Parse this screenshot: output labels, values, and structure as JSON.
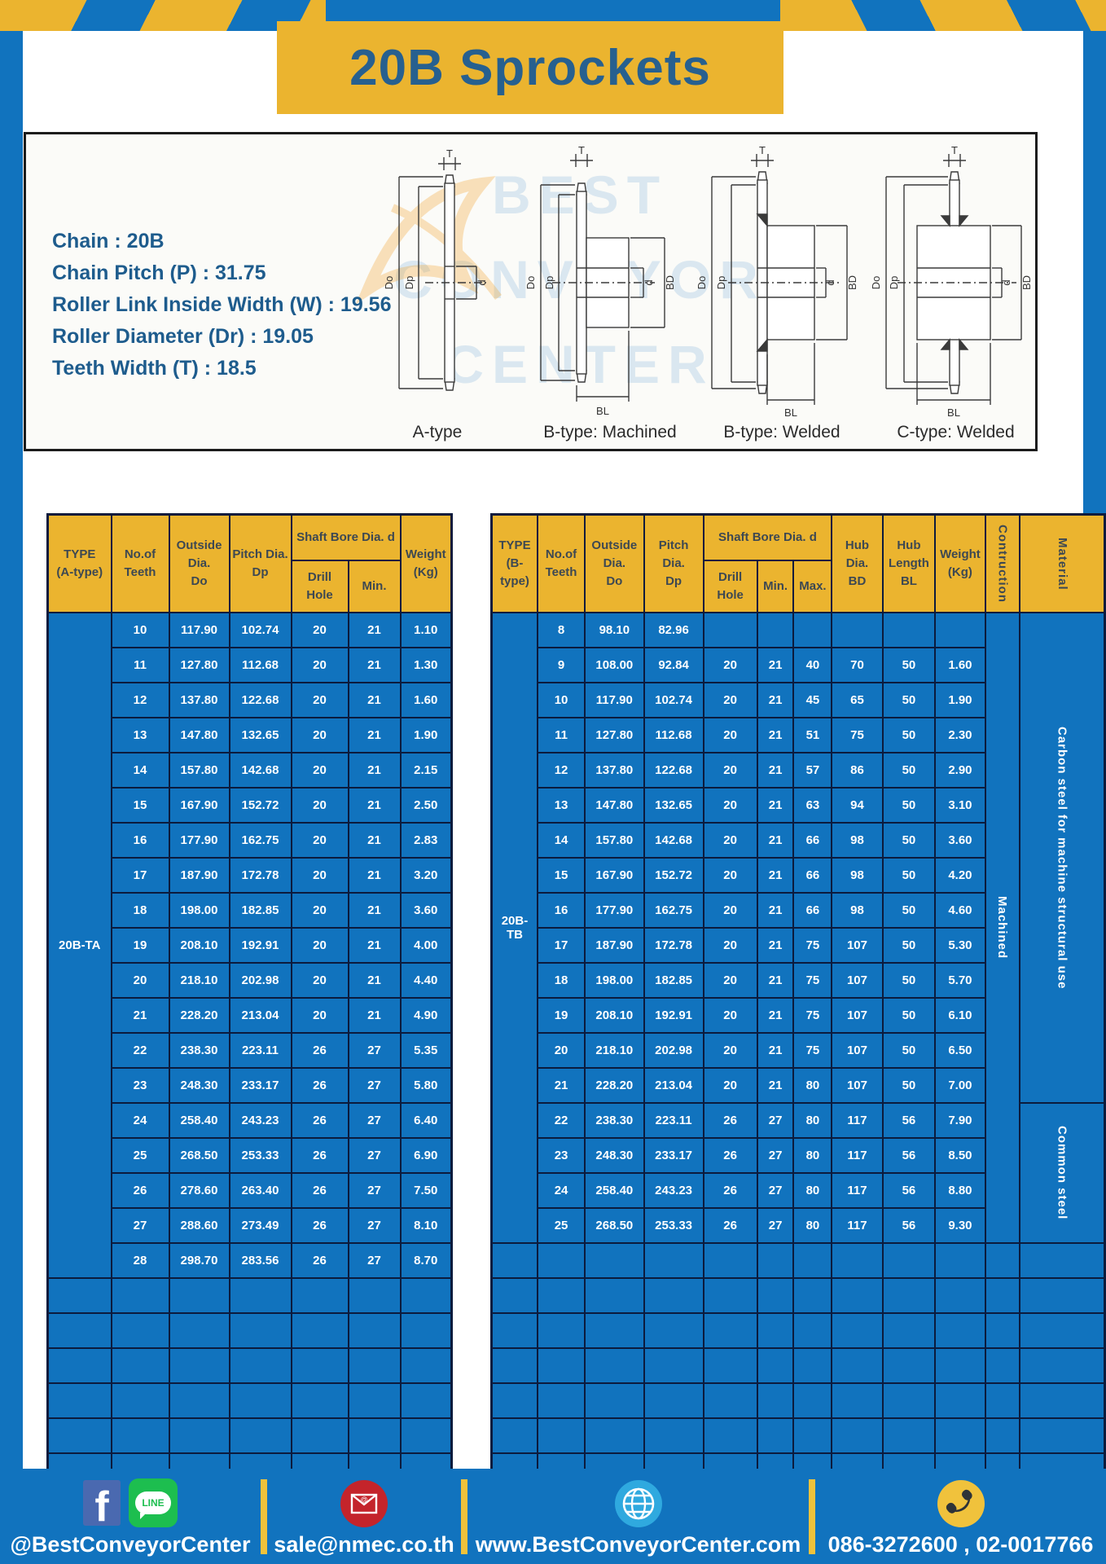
{
  "title": "20B Sprockets",
  "diagram_panel": {
    "specs": [
      "Chain  : 20B",
      "Chain Pitch (P)  :  31.75",
      "Roller Link Inside Width (W)  :  19.56",
      "Roller Diameter (Dr)  : 19.05",
      "Teeth Width (T)  :  18.5"
    ],
    "captions": [
      "A-type",
      "B-type: Machined",
      "B-type: Welded",
      "C-type: Welded"
    ],
    "dims": {
      "t": "T",
      "do": "Do",
      "dp": "Dp",
      "d": "d",
      "bd": "BD",
      "bl": "BL"
    },
    "watermark": [
      "BEST",
      "CONVEYOR",
      "CENTER"
    ]
  },
  "table_a": {
    "type_label": "20B-TA",
    "headers": {
      "type": "TYPE\n(A-type)",
      "teeth": "No.of\nTeeth",
      "outside": "Outside\nDia.\nDo",
      "pitch": "Pitch Dia.\nDp",
      "shaft_group": "Shaft Bore Dia. d",
      "drill": "Drill Hole",
      "min": "Min.",
      "weight": "Weight\n(Kg)"
    },
    "rows": [
      [
        "10",
        "117.90",
        "102.74",
        "20",
        "21",
        "1.10"
      ],
      [
        "11",
        "127.80",
        "112.68",
        "20",
        "21",
        "1.30"
      ],
      [
        "12",
        "137.80",
        "122.68",
        "20",
        "21",
        "1.60"
      ],
      [
        "13",
        "147.80",
        "132.65",
        "20",
        "21",
        "1.90"
      ],
      [
        "14",
        "157.80",
        "142.68",
        "20",
        "21",
        "2.15"
      ],
      [
        "15",
        "167.90",
        "152.72",
        "20",
        "21",
        "2.50"
      ],
      [
        "16",
        "177.90",
        "162.75",
        "20",
        "21",
        "2.83"
      ],
      [
        "17",
        "187.90",
        "172.78",
        "20",
        "21",
        "3.20"
      ],
      [
        "18",
        "198.00",
        "182.85",
        "20",
        "21",
        "3.60"
      ],
      [
        "19",
        "208.10",
        "192.91",
        "20",
        "21",
        "4.00"
      ],
      [
        "20",
        "218.10",
        "202.98",
        "20",
        "21",
        "4.40"
      ],
      [
        "21",
        "228.20",
        "213.04",
        "20",
        "21",
        "4.90"
      ],
      [
        "22",
        "238.30",
        "223.11",
        "26",
        "27",
        "5.35"
      ],
      [
        "23",
        "248.30",
        "233.17",
        "26",
        "27",
        "5.80"
      ],
      [
        "24",
        "258.40",
        "243.23",
        "26",
        "27",
        "6.40"
      ],
      [
        "25",
        "268.50",
        "253.33",
        "26",
        "27",
        "6.90"
      ],
      [
        "26",
        "278.60",
        "263.40",
        "26",
        "27",
        "7.50"
      ],
      [
        "27",
        "288.60",
        "273.49",
        "26",
        "27",
        "8.10"
      ],
      [
        "28",
        "298.70",
        "283.56",
        "26",
        "27",
        "8.70"
      ]
    ],
    "empty_row_count": 6
  },
  "table_b": {
    "type_label": "20B-TB",
    "headers": {
      "type": "TYPE\n(B-type)",
      "teeth": "No.of\nTeeth",
      "outside": "Outside\nDia.\nDo",
      "pitch": "Pitch Dia.\nDp",
      "shaft_group": "Shaft Bore Dia. d",
      "drill": "Drill Hole",
      "min": "Min.",
      "max": "Max.",
      "hub_dia": "Hub Dia.\nBD",
      "hub_len": "Hub\nLength\nBL",
      "weight": "Weight\n(Kg)",
      "construction": "Contruction",
      "material": "Material"
    },
    "construction_label": "Machined",
    "material_spans": [
      {
        "label": "Carbon steel for machine structural use",
        "rows": 14
      },
      {
        "label": "Common steel",
        "rows": 4
      }
    ],
    "rows": [
      [
        "8",
        "98.10",
        "82.96",
        "",
        "",
        "",
        "",
        "",
        ""
      ],
      [
        "9",
        "108.00",
        "92.84",
        "20",
        "21",
        "40",
        "70",
        "50",
        "1.60"
      ],
      [
        "10",
        "117.90",
        "102.74",
        "20",
        "21",
        "45",
        "65",
        "50",
        "1.90"
      ],
      [
        "11",
        "127.80",
        "112.68",
        "20",
        "21",
        "51",
        "75",
        "50",
        "2.30"
      ],
      [
        "12",
        "137.80",
        "122.68",
        "20",
        "21",
        "57",
        "86",
        "50",
        "2.90"
      ],
      [
        "13",
        "147.80",
        "132.65",
        "20",
        "21",
        "63",
        "94",
        "50",
        "3.10"
      ],
      [
        "14",
        "157.80",
        "142.68",
        "20",
        "21",
        "66",
        "98",
        "50",
        "3.60"
      ],
      [
        "15",
        "167.90",
        "152.72",
        "20",
        "21",
        "66",
        "98",
        "50",
        "4.20"
      ],
      [
        "16",
        "177.90",
        "162.75",
        "20",
        "21",
        "66",
        "98",
        "50",
        "4.60"
      ],
      [
        "17",
        "187.90",
        "172.78",
        "20",
        "21",
        "75",
        "107",
        "50",
        "5.30"
      ],
      [
        "18",
        "198.00",
        "182.85",
        "20",
        "21",
        "75",
        "107",
        "50",
        "5.70"
      ],
      [
        "19",
        "208.10",
        "192.91",
        "20",
        "21",
        "75",
        "107",
        "50",
        "6.10"
      ],
      [
        "20",
        "218.10",
        "202.98",
        "20",
        "21",
        "75",
        "107",
        "50",
        "6.50"
      ],
      [
        "21",
        "228.20",
        "213.04",
        "20",
        "21",
        "80",
        "107",
        "50",
        "7.00"
      ],
      [
        "22",
        "238.30",
        "223.11",
        "26",
        "27",
        "80",
        "117",
        "56",
        "7.90"
      ],
      [
        "23",
        "248.30",
        "233.17",
        "26",
        "27",
        "80",
        "117",
        "56",
        "8.50"
      ],
      [
        "24",
        "258.40",
        "243.23",
        "26",
        "27",
        "80",
        "117",
        "56",
        "8.80"
      ],
      [
        "25",
        "268.50",
        "253.33",
        "26",
        "27",
        "80",
        "117",
        "56",
        "9.30"
      ]
    ],
    "empty_row_count": 7
  },
  "footer": {
    "social_text": "@BestConveyorCenter",
    "line_badge": "LINE",
    "fb_letter": "f",
    "email": "sale@nmec.co.th",
    "website": "www.BestConveyorCenter.com",
    "phone": "086-3272600 , 02-0017766"
  },
  "colors": {
    "blue": "#1173BE",
    "yellow": "#EBB42F",
    "border_navy": "#0C1B3D",
    "title_blue": "#27608F"
  }
}
